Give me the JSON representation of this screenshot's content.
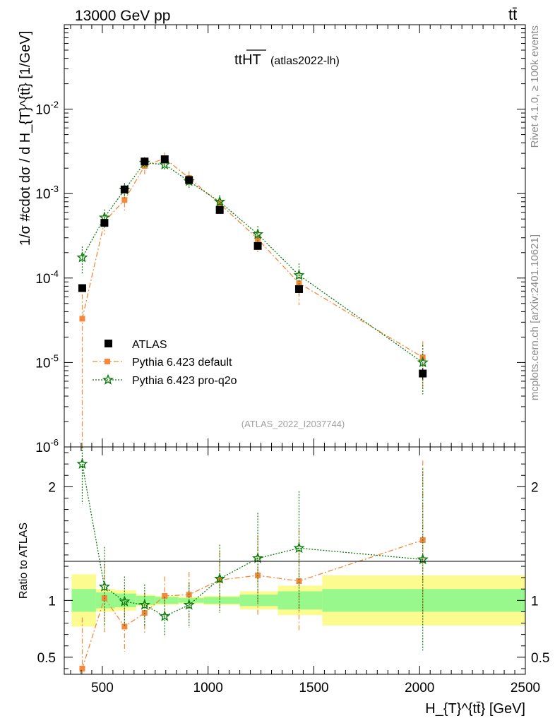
{
  "header": {
    "energy_label": "13000 GeV pp",
    "process_label": "tt̄"
  },
  "side_labels": {
    "rivet": "Rivet 4.1.0, ≥ 100k events",
    "mcplots": "mcplots.cern.ch [arXiv:2401.10621]"
  },
  "colors": {
    "atlas": "#000000",
    "pythia_default": "#f5883a",
    "pythia_pro_q2o": "#0a7a0a",
    "band_yellow": "#fbfb8f",
    "band_green": "#98f88c"
  },
  "chart_data": {
    "type": "scatter",
    "title_main": "ttHT",
    "title_sub": "(atlas2022-lh)",
    "watermark": "(ATLAS_2022_I2037744)",
    "xlabel": "H_{T}^{tt̄} [GeV]",
    "ylabel": "1/σ #cdot dσ / d H_{T}^{tt̄} [1/GeV]",
    "ratio_ylabel": "Ratio to ATLAS",
    "xlim": [
      320,
      2500
    ],
    "ylim_log": [
      1e-06,
      0.1
    ],
    "ratio_ylim": [
      0.35,
      2.35
    ],
    "x_ticks": [
      500,
      1000,
      1500,
      2000,
      2500
    ],
    "x_tick_labels": [
      "500",
      "1000",
      "1500",
      "2000",
      "2500"
    ],
    "y_tick_labels": [
      "10^{-6}",
      "10^{-5}",
      "10^{-4}",
      "10^{-3}",
      "10^{-2}"
    ],
    "ratio_ticks": [
      0.5,
      1,
      2
    ],
    "ratio_tick_labels": [
      "0.5",
      "1",
      "2"
    ],
    "legend_position": "middle-left",
    "bins": [
      {
        "lo": 355,
        "hi": 470
      },
      {
        "lo": 470,
        "hi": 560
      },
      {
        "lo": 560,
        "hi": 660
      },
      {
        "lo": 660,
        "hi": 750
      },
      {
        "lo": 750,
        "hi": 860
      },
      {
        "lo": 860,
        "hi": 980
      },
      {
        "lo": 980,
        "hi": 1150
      },
      {
        "lo": 1150,
        "hi": 1330
      },
      {
        "lo": 1330,
        "hi": 1540
      },
      {
        "lo": 1540,
        "hi": 2500
      }
    ],
    "x": [
      405,
      510,
      605,
      700,
      795,
      910,
      1055,
      1235,
      1430,
      2015
    ],
    "series": [
      {
        "name": "ATLAS",
        "marker": "square",
        "values": [
          7.6e-05,
          0.00045,
          0.00112,
          0.0024,
          0.00255,
          0.00145,
          0.00064,
          0.00024,
          7.4e-05,
          7.4e-06
        ],
        "err_up": [
          0.08,
          0.06,
          0.05,
          0.05,
          0.05,
          0.06,
          0.07,
          0.08,
          0.1,
          0.15
        ],
        "err_down": [
          0.08,
          0.06,
          0.05,
          0.05,
          0.05,
          0.06,
          0.07,
          0.08,
          0.1,
          0.15
        ]
      },
      {
        "name": "Pythia 6.423 default",
        "marker": "filled-square",
        "line": "dashdot",
        "values": [
          3.3e-05,
          0.000465,
          0.00084,
          0.00212,
          0.00262,
          0.00153,
          0.00076,
          0.00029,
          8.7e-05,
          1.15e-05
        ],
        "err_up": [
          0.95,
          0.3,
          0.25,
          0.2,
          0.17,
          0.2,
          0.22,
          0.3,
          0.4,
          0.55
        ],
        "err_down": [
          0.97,
          0.3,
          0.25,
          0.2,
          0.17,
          0.2,
          0.22,
          0.3,
          0.45,
          0.6
        ]
      },
      {
        "name": "Pythia 6.423 pro-q2o",
        "marker": "star",
        "line": "dotted",
        "values": [
          0.000175,
          0.00052,
          0.00111,
          0.00232,
          0.0022,
          0.0014,
          0.0008,
          0.00033,
          0.000108,
          1e-05
        ],
        "err_up": [
          0.35,
          0.25,
          0.2,
          0.15,
          0.15,
          0.18,
          0.2,
          0.25,
          0.38,
          0.6
        ],
        "err_down": [
          0.35,
          0.25,
          0.2,
          0.15,
          0.15,
          0.18,
          0.2,
          0.25,
          0.42,
          0.58
        ]
      }
    ],
    "ratio": {
      "pythia_default": [
        0.4,
        1.02,
        0.77,
        0.89,
        1.04,
        1.05,
        1.18,
        1.22,
        1.17,
        1.53
      ],
      "pythia_default_err_up": [
        0.45,
        0.3,
        0.22,
        0.18,
        0.17,
        0.2,
        0.25,
        0.35,
        0.45,
        0.7
      ],
      "pythia_default_err_down": [
        0.95,
        0.3,
        0.22,
        0.18,
        0.17,
        0.2,
        0.25,
        0.35,
        0.45,
        0.7
      ],
      "pythia_pro_q2o": [
        2.2,
        1.12,
        0.99,
        0.96,
        0.86,
        0.96,
        1.19,
        1.37,
        1.46,
        1.36
      ],
      "pythia_pro_q2o_err_up": [
        0.15,
        0.35,
        0.22,
        0.18,
        0.17,
        0.2,
        0.3,
        0.4,
        0.5,
        0.8
      ],
      "pythia_pro_q2o_err_down": [
        0.35,
        0.35,
        0.22,
        0.18,
        0.17,
        0.2,
        0.3,
        0.4,
        0.55,
        0.8
      ],
      "band_green_hw": [
        0.1,
        0.07,
        0.06,
        0.04,
        0.03,
        0.02,
        0.03,
        0.05,
        0.08,
        0.1
      ],
      "band_yellow_hw": [
        0.23,
        0.1,
        0.09,
        0.05,
        0.04,
        0.03,
        0.04,
        0.08,
        0.13,
        0.22
      ]
    }
  }
}
